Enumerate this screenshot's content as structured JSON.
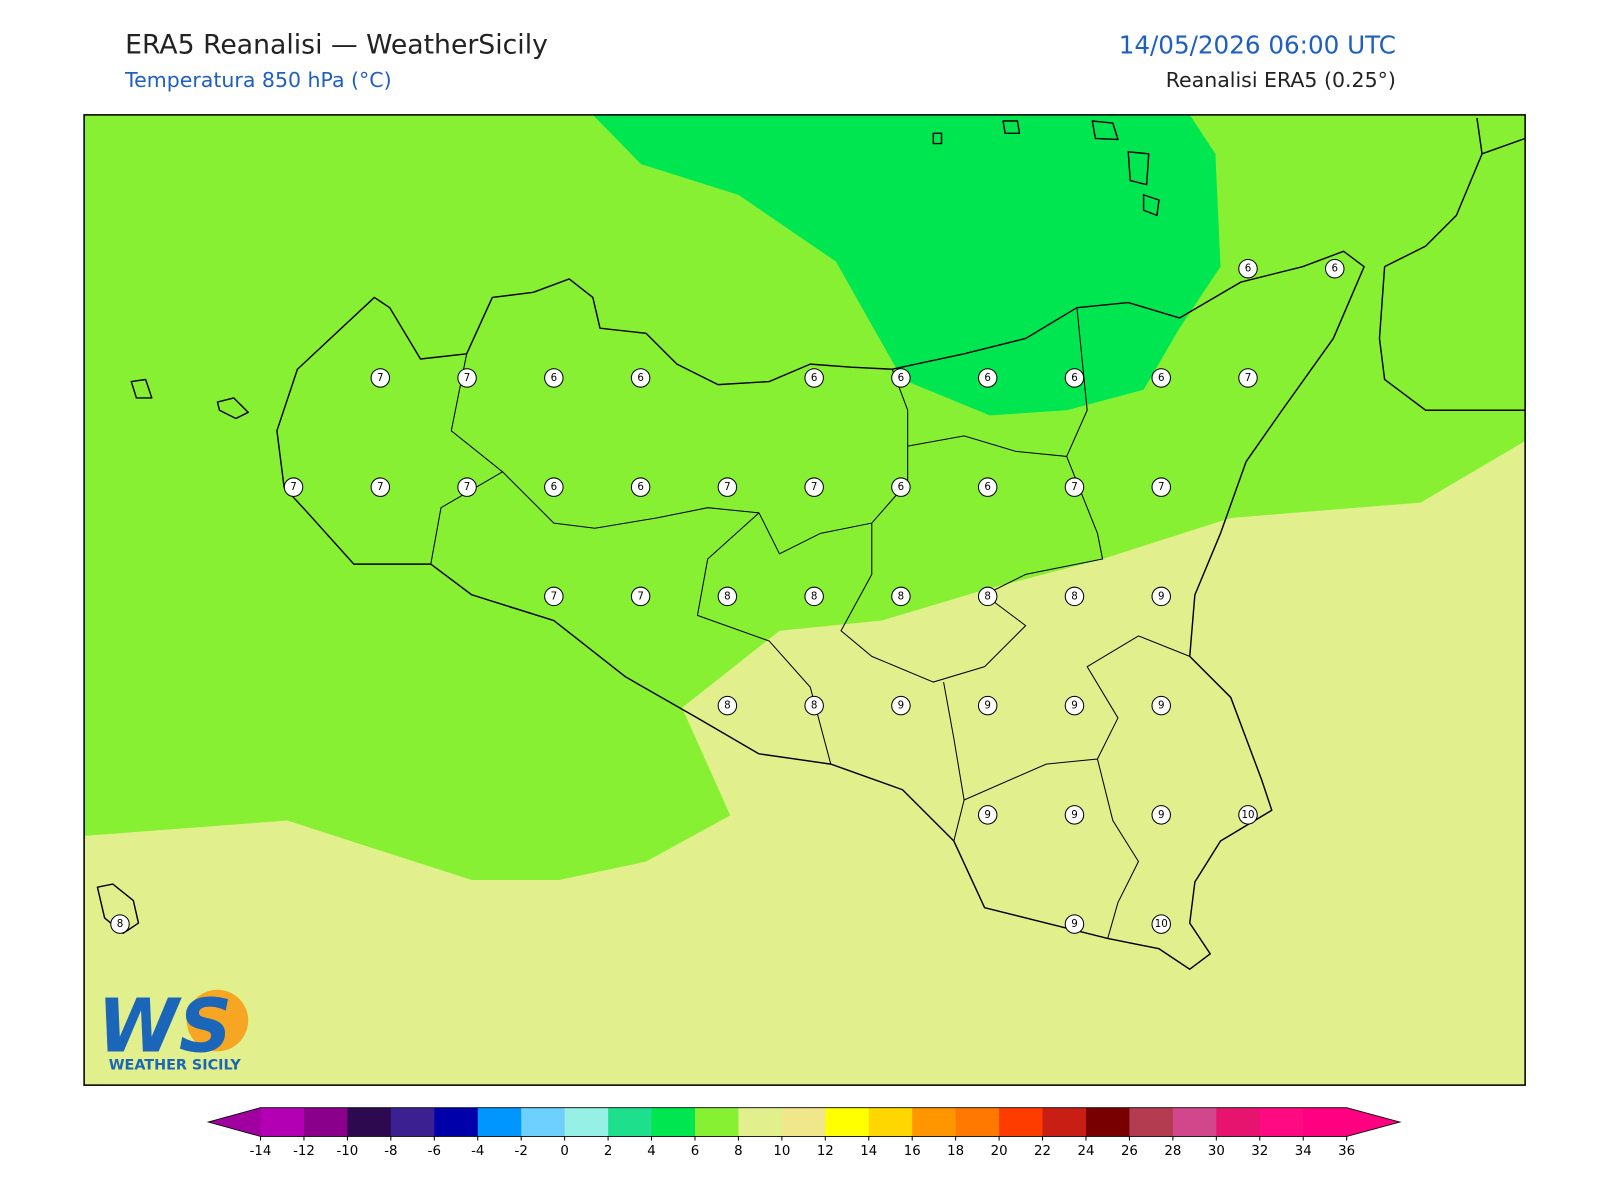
{
  "header": {
    "title": "ERA5 Reanalisi — WeatherSicily",
    "subtitle": "Temperatura 850 hPa (°C)",
    "datetime": "14/05/2026 06:00 UTC",
    "source": "Reanalisi ERA5 (0.25°)"
  },
  "logo": {
    "mark": "WS",
    "text": "WEATHER SICILY"
  },
  "stations": [
    [
      null,
      null,
      null,
      null,
      null,
      null,
      null,
      null,
      null,
      null,
      null,
      null,
      null,
      6,
      6
    ],
    [
      null,
      null,
      null,
      7,
      7,
      6,
      6,
      null,
      6,
      6,
      6,
      6,
      6,
      7,
      null
    ],
    [
      null,
      null,
      7,
      7,
      7,
      6,
      6,
      7,
      7,
      6,
      6,
      7,
      7,
      null,
      null
    ],
    [
      null,
      null,
      null,
      null,
      null,
      7,
      7,
      8,
      8,
      8,
      8,
      8,
      9,
      null,
      null
    ],
    [
      null,
      null,
      null,
      null,
      null,
      null,
      null,
      8,
      8,
      9,
      9,
      9,
      9,
      null,
      null
    ],
    [
      null,
      null,
      null,
      null,
      null,
      null,
      null,
      null,
      null,
      null,
      9,
      9,
      9,
      10,
      null
    ],
    [
      8,
      null,
      null,
      null,
      null,
      null,
      null,
      null,
      null,
      null,
      null,
      9,
      10,
      null,
      null
    ]
  ],
  "colorbar": {
    "levels": [
      -14,
      -12,
      -10,
      -8,
      -6,
      -4,
      -2,
      0,
      2,
      4,
      6,
      8,
      10,
      12,
      14,
      16,
      18,
      20,
      22,
      24,
      26,
      28,
      30,
      32,
      34,
      36
    ],
    "colors": [
      "#b400b4",
      "#8b008b",
      "#2d0a50",
      "#3a2090",
      "#0000aa",
      "#0096ff",
      "#6dd0ff",
      "#96f0e6",
      "#1ee08c",
      "#00e650",
      "#87f032",
      "#e1f08c",
      "#f0e68c",
      "#ffff00",
      "#ffd700",
      "#ff9600",
      "#ff7800",
      "#ff3c00",
      "#c81e14",
      "#780000",
      "#b43c50",
      "#d2468c",
      "#e6146e",
      "#ff0a82",
      "#ff0080"
    ],
    "extend_colors": [
      "#a000a0",
      "#ff0080"
    ]
  }
}
